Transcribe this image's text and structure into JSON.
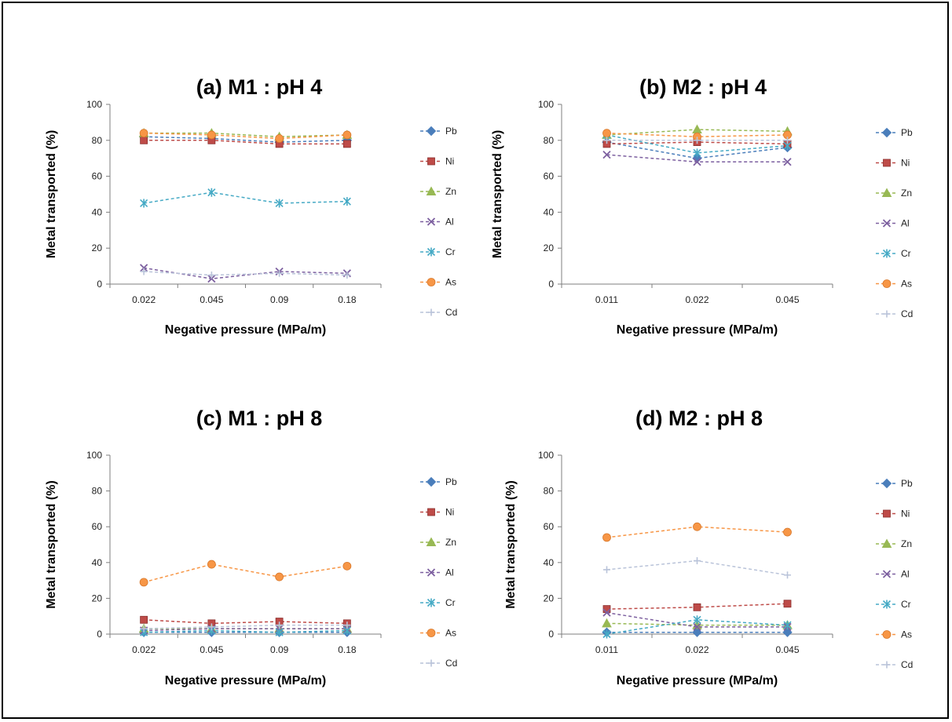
{
  "series_styles": [
    {
      "name": "Pb",
      "color": "#4a7ebb",
      "marker": "diamond"
    },
    {
      "name": "Ni",
      "color": "#be4b48",
      "marker": "square"
    },
    {
      "name": "Zn",
      "color": "#98b954",
      "marker": "triangle"
    },
    {
      "name": "Al",
      "color": "#7d60a0",
      "marker": "x"
    },
    {
      "name": "Cr",
      "color": "#46aac5",
      "marker": "star"
    },
    {
      "name": "As",
      "color": "#f79646",
      "marker": "circle"
    },
    {
      "name": "Cd",
      "color": "#b9c3d9",
      "marker": "plus"
    }
  ],
  "chart_data": [
    {
      "type": "line",
      "title": "(a) M1 : pH 4",
      "xlabel": "Negative pressure (MPa/m)",
      "ylabel": "Metal transported (%)",
      "categories": [
        "0.022",
        "0.045",
        "0.09",
        "0.18"
      ],
      "ylim": [
        0,
        100
      ],
      "yticks": [
        "0",
        "20",
        "40",
        "60",
        "80",
        "100"
      ],
      "legend_position": "right",
      "series": [
        {
          "name": "Pb",
          "values": [
            82,
            81,
            79,
            80
          ]
        },
        {
          "name": "Ni",
          "values": [
            80,
            80,
            78,
            78
          ]
        },
        {
          "name": "Zn",
          "values": [
            84,
            84,
            82,
            83
          ]
        },
        {
          "name": "Al",
          "values": [
            9,
            3,
            7,
            6
          ]
        },
        {
          "name": "Cr",
          "values": [
            45,
            51,
            45,
            46
          ]
        },
        {
          "name": "As",
          "values": [
            84,
            83,
            81,
            83
          ]
        },
        {
          "name": "Cd",
          "values": [
            7,
            5,
            6,
            5
          ]
        }
      ]
    },
    {
      "type": "line",
      "title": "(b) M2 : pH 4",
      "xlabel": "Negative pressure (MPa/m)",
      "ylabel": "Metal transported (%)",
      "categories": [
        "0.011",
        "0.022",
        "0.045"
      ],
      "ylim": [
        0,
        100
      ],
      "yticks": [
        "0",
        "20",
        "40",
        "60",
        "80",
        "100"
      ],
      "legend_position": "right",
      "series": [
        {
          "name": "Pb",
          "values": [
            79,
            70,
            76
          ]
        },
        {
          "name": "Ni",
          "values": [
            78,
            79,
            78
          ]
        },
        {
          "name": "Zn",
          "values": [
            83,
            86,
            85
          ]
        },
        {
          "name": "Al",
          "values": [
            72,
            68,
            68
          ]
        },
        {
          "name": "Cr",
          "values": [
            83,
            73,
            77
          ]
        },
        {
          "name": "As",
          "values": [
            84,
            82,
            83
          ]
        },
        {
          "name": "Cd",
          "values": [
            80,
            80,
            80
          ]
        }
      ]
    },
    {
      "type": "line",
      "title": "(c) M1 : pH 8",
      "xlabel": "Negative pressure (MPa/m)",
      "ylabel": "Metal transported (%)",
      "categories": [
        "0.022",
        "0.045",
        "0.09",
        "0.18"
      ],
      "ylim": [
        0,
        100
      ],
      "yticks": [
        "0",
        "20",
        "40",
        "60",
        "80",
        "100"
      ],
      "legend_position": "right",
      "series": [
        {
          "name": "Pb",
          "values": [
            1,
            1,
            1,
            1
          ]
        },
        {
          "name": "Ni",
          "values": [
            8,
            6,
            7,
            6
          ]
        },
        {
          "name": "Zn",
          "values": [
            3,
            3,
            3,
            3
          ]
        },
        {
          "name": "Al",
          "values": [
            2,
            3,
            3,
            3
          ]
        },
        {
          "name": "Cr",
          "values": [
            1,
            2,
            1,
            2
          ]
        },
        {
          "name": "As",
          "values": [
            29,
            39,
            32,
            38
          ]
        },
        {
          "name": "Cd",
          "values": [
            3,
            4,
            5,
            5
          ]
        }
      ]
    },
    {
      "type": "line",
      "title": "(d) M2 : pH 8",
      "xlabel": "Negative pressure (MPa/m)",
      "ylabel": "Metal transported (%)",
      "categories": [
        "0.011",
        "0.022",
        "0.045"
      ],
      "ylim": [
        0,
        100
      ],
      "yticks": [
        "0",
        "20",
        "40",
        "60",
        "80",
        "100"
      ],
      "legend_position": "right",
      "series": [
        {
          "name": "Pb",
          "values": [
            1,
            1,
            1
          ]
        },
        {
          "name": "Ni",
          "values": [
            14,
            15,
            17
          ]
        },
        {
          "name": "Zn",
          "values": [
            6,
            5,
            5
          ]
        },
        {
          "name": "Al",
          "values": [
            12,
            4,
            4
          ]
        },
        {
          "name": "Cr",
          "values": [
            0,
            8,
            5
          ]
        },
        {
          "name": "As",
          "values": [
            54,
            60,
            57
          ]
        },
        {
          "name": "Cd",
          "values": [
            36,
            41,
            33
          ]
        }
      ]
    }
  ]
}
